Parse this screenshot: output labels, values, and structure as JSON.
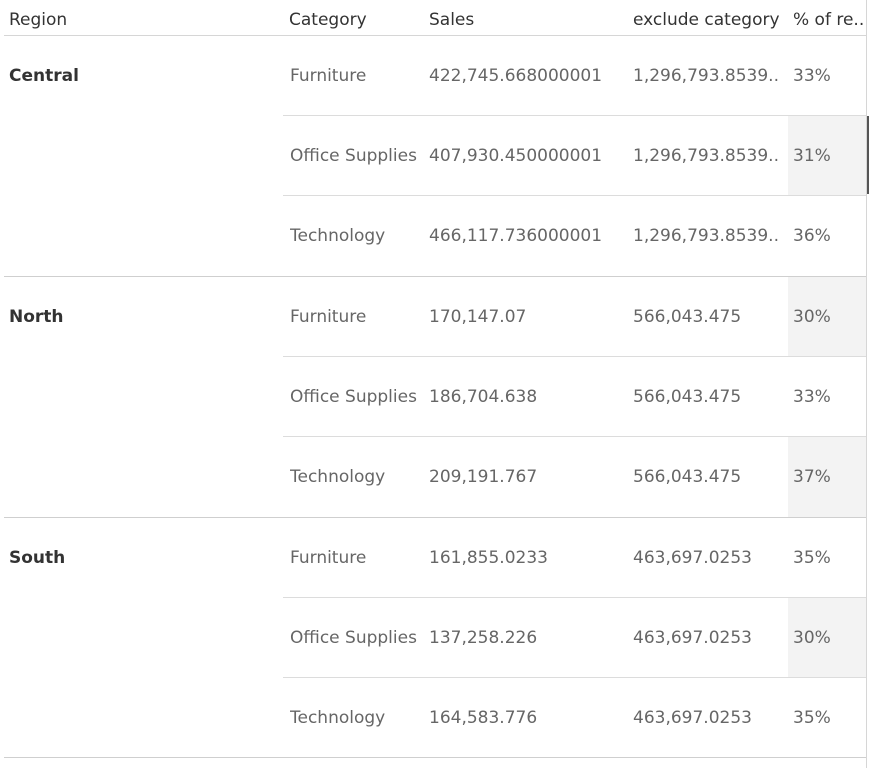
{
  "headers": {
    "region": "Region",
    "category": "Category",
    "sales": "Sales",
    "exclude": "exclude category",
    "pct": "% of re.."
  },
  "regions": [
    {
      "name": "Central",
      "rows": [
        {
          "category": "Furniture",
          "sales": "422,745.668000001",
          "exclude": "1,296,793.8539..",
          "pct": "33%"
        },
        {
          "category": "Office Supplies",
          "sales": "407,930.450000001",
          "exclude": "1,296,793.8539..",
          "pct": "31%"
        },
        {
          "category": "Technology",
          "sales": "466,117.736000001",
          "exclude": "1,296,793.8539..",
          "pct": "36%"
        }
      ]
    },
    {
      "name": "North",
      "rows": [
        {
          "category": "Furniture",
          "sales": "170,147.07",
          "exclude": "566,043.475",
          "pct": "30%"
        },
        {
          "category": "Office Supplies",
          "sales": "186,704.638",
          "exclude": "566,043.475",
          "pct": "33%"
        },
        {
          "category": "Technology",
          "sales": "209,191.767",
          "exclude": "566,043.475",
          "pct": "37%"
        }
      ]
    },
    {
      "name": "South",
      "rows": [
        {
          "category": "Furniture",
          "sales": "161,855.0233",
          "exclude": "463,697.0253",
          "pct": "35%"
        },
        {
          "category": "Office Supplies",
          "sales": "137,258.226",
          "exclude": "463,697.0253",
          "pct": "30%"
        },
        {
          "category": "Technology",
          "sales": "164,583.776",
          "exclude": "463,697.0253",
          "pct": "35%"
        }
      ]
    }
  ]
}
